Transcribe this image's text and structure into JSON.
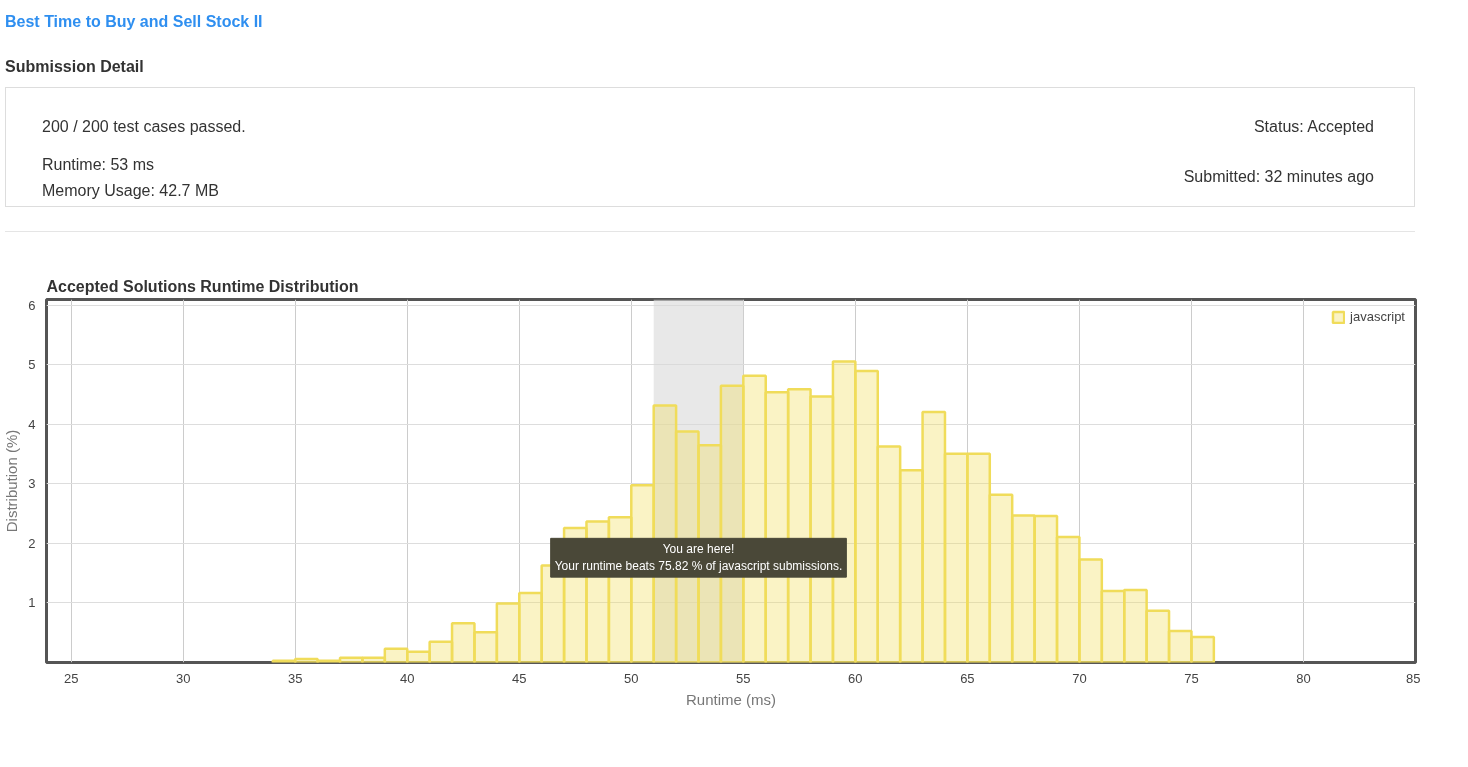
{
  "chart_data": {
    "type": "histogram",
    "title": "Accepted Solutions Runtime Distribution",
    "xlabel": "Runtime (ms)",
    "ylabel": "Distribution (%)",
    "annotations": [
      "Best Time to Buy and Sell Stock II",
      "Submission Detail",
      "200 / 200 test cases passed.",
      "Runtime: 53 ms",
      "Memory Usage: 42.7 MB",
      "Status: Accepted",
      "Submitted: 32 minutes ago",
      {
        "text": "You are here!\nYour runtime beats 75.82 % of javascript submissions.",
        "x": 53,
        "y": 1.3
      }
    ],
    "bins": [
      34,
      35,
      36,
      37,
      38,
      39,
      40,
      41,
      42,
      43,
      44,
      45,
      46,
      47,
      48,
      49,
      50,
      51,
      52,
      53,
      54,
      55,
      56,
      57,
      58,
      59,
      60,
      61,
      62,
      63,
      64,
      65,
      66,
      67,
      68,
      69,
      70,
      71,
      72,
      73,
      74,
      75,
      76
    ],
    "series": [
      {
        "name": "javascript",
        "color": "#f0dc5a",
        "values": [
          0.03,
          0.06,
          0.03,
          0.08,
          0.08,
          0.23,
          0.18,
          0.35,
          0.66,
          0.51,
          0.99,
          1.17,
          1.63,
          2.26,
          2.37,
          2.44,
          2.98,
          4.32,
          3.88,
          3.65,
          4.65,
          4.82,
          4.54,
          4.59,
          4.47,
          5.06,
          4.9,
          3.63,
          3.23,
          4.21,
          3.51,
          3.51,
          2.82,
          2.47,
          2.46,
          2.11,
          1.73,
          1.2,
          1.22,
          0.87,
          0.53,
          0.43
        ]
      }
    ],
    "bands": [
      {
        "axis": "x",
        "from": 51,
        "to": 55,
        "color": "#d9d9d9"
      }
    ],
    "xlim": [
      23.9,
      85
    ],
    "ylim": [
      0,
      6.1
    ],
    "xticks": [
      25,
      30,
      35,
      40,
      45,
      50,
      55,
      60,
      65,
      70,
      75,
      80,
      85
    ],
    "yticks": [
      1,
      2,
      3,
      4,
      5,
      6
    ],
    "grid": true,
    "legend": "top right"
  }
}
